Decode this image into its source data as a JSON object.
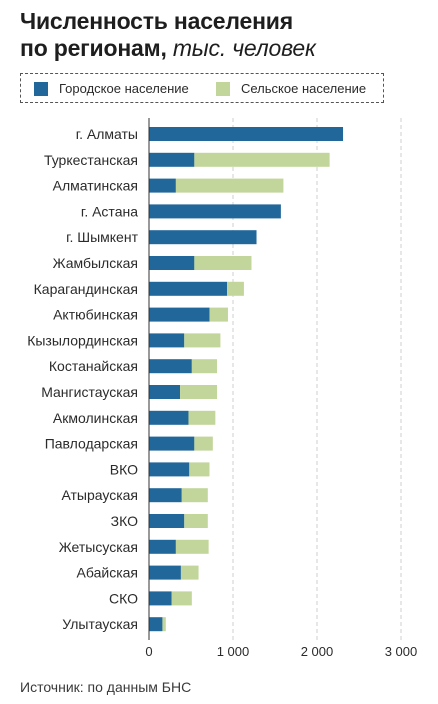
{
  "title": {
    "line1": "Численность населения",
    "line2_main": "по регионам,",
    "line2_unit": "тыс. человек"
  },
  "legend": {
    "urban_label": "Городское население",
    "rural_label": "Сельское население"
  },
  "colors": {
    "urban": "#22679a",
    "rural": "#c2d69b",
    "grid": "#cfcfcf",
    "axis": "#333333",
    "text": "#2b2b2b"
  },
  "source": "Источник: по данным БНС",
  "chart_data": {
    "type": "bar",
    "orientation": "horizontal",
    "stacked": true,
    "categories": [
      "г. Алматы",
      "Туркестанская",
      "Алматинская",
      "г. Астана",
      "г. Шымкент",
      "Жамбылская",
      "Карагандинская",
      "Актюбинская",
      "Кызылординская",
      "Костанайская",
      "Мангистауская",
      "Акмолинская",
      "Павлодарская",
      "ВКО",
      "Атырауская",
      "ЗКО",
      "Жетысуская",
      "Абайская",
      "СКО",
      "Улытауская"
    ],
    "series": [
      {
        "name": "Городское население",
        "color": "#22679a",
        "values": [
          2310,
          540,
          320,
          1570,
          1280,
          540,
          930,
          720,
          420,
          510,
          370,
          470,
          540,
          480,
          390,
          420,
          320,
          380,
          270,
          160
        ]
      },
      {
        "name": "Сельское население",
        "color": "#c2d69b",
        "values": [
          0,
          1610,
          1280,
          0,
          0,
          680,
          200,
          220,
          430,
          300,
          440,
          320,
          220,
          240,
          310,
          280,
          390,
          210,
          240,
          40
        ]
      }
    ],
    "xlim": [
      0,
      3000
    ],
    "xticks": [
      0,
      1000,
      2000,
      3000
    ],
    "xtick_labels": [
      "0",
      "1 000",
      "2 000",
      "3 000"
    ],
    "grid": true,
    "legend_position": "top"
  }
}
